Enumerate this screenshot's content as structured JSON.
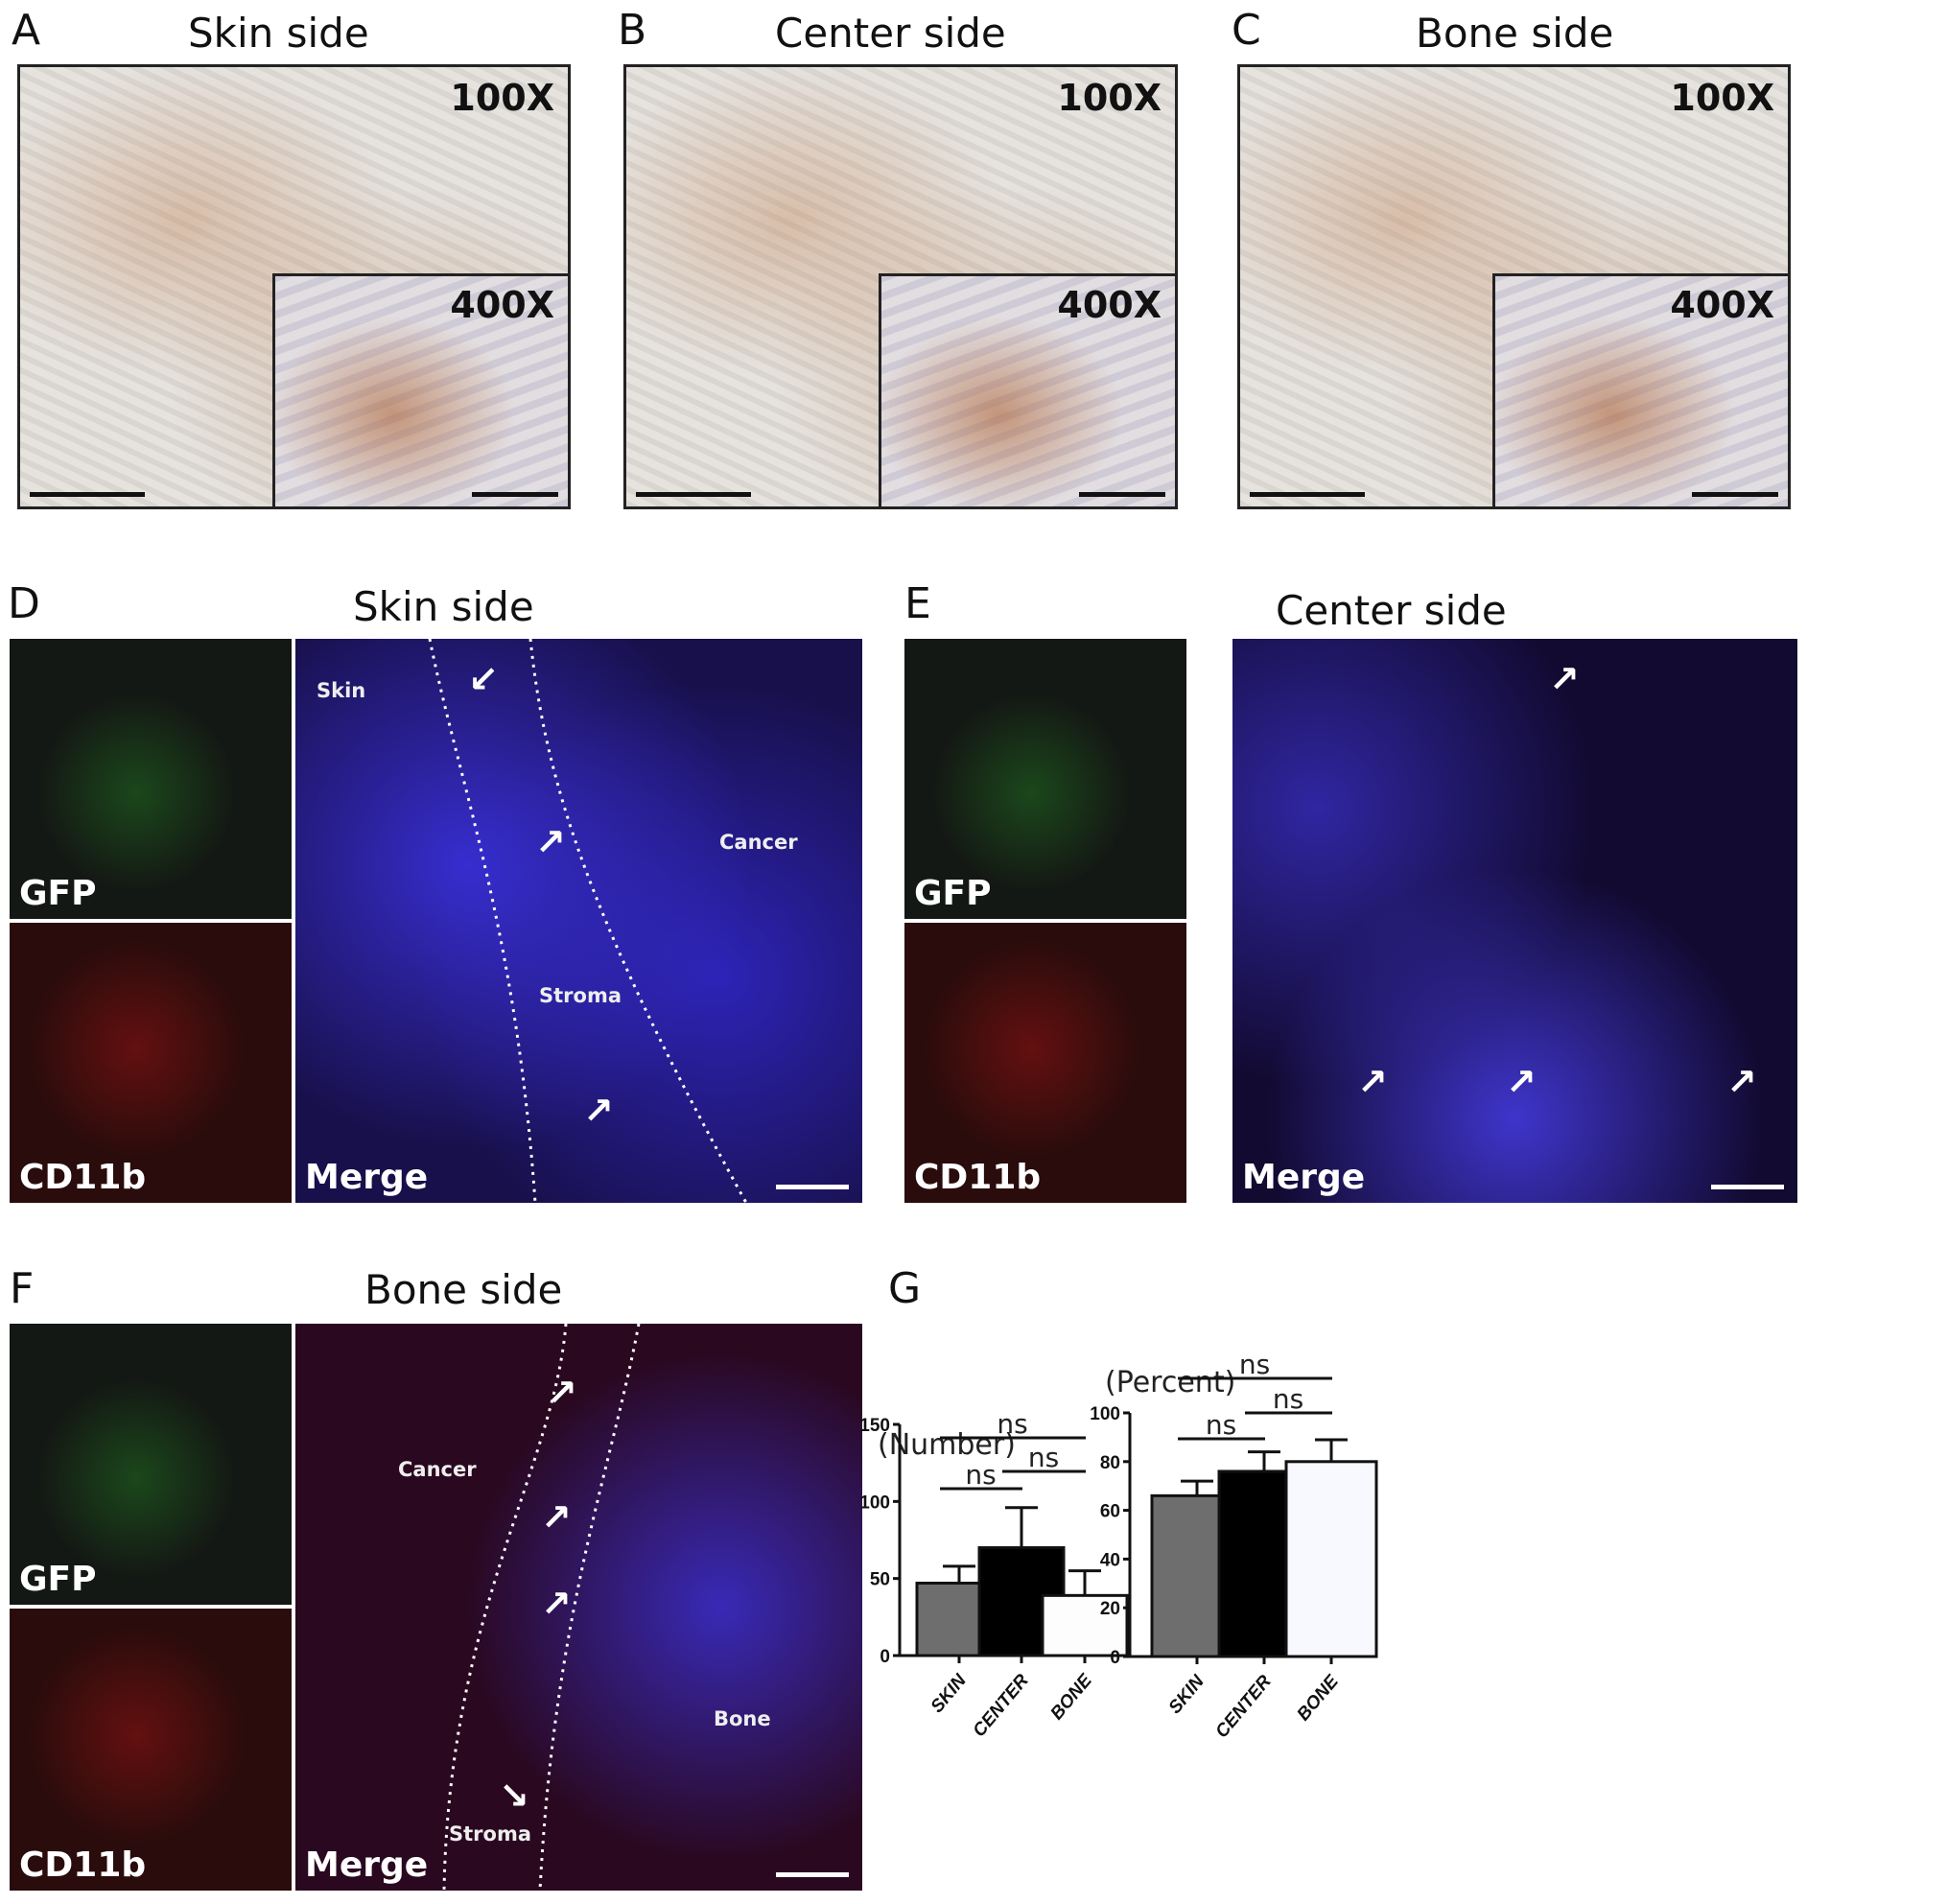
{
  "panels": {
    "A": {
      "letter": "A",
      "title": "Skin side",
      "low_mag": "100X",
      "high_mag": "400X"
    },
    "B": {
      "letter": "B",
      "title": "Center side",
      "low_mag": "100X",
      "high_mag": "400X"
    },
    "C": {
      "letter": "C",
      "title": "Bone side",
      "low_mag": "100X",
      "high_mag": "400X"
    },
    "D": {
      "letter": "D",
      "title": "Skin side",
      "gfp": "GFP",
      "cd11b": "CD11b",
      "merge": "Merge",
      "regions": [
        "Skin",
        "Cancer",
        "Stroma"
      ]
    },
    "E": {
      "letter": "E",
      "title": "Center side",
      "gfp": "GFP",
      "cd11b": "CD11b",
      "merge": "Merge"
    },
    "F": {
      "letter": "F",
      "title": "Bone side",
      "gfp": "GFP",
      "cd11b": "CD11b",
      "merge": "Merge",
      "regions": [
        "Cancer",
        "Bone",
        "Stroma"
      ]
    },
    "G": {
      "letter": "G"
    }
  },
  "chart_data": [
    {
      "type": "bar",
      "ylabel": "(Number)",
      "categories": [
        "SKIN",
        "CENTER",
        "BONE"
      ],
      "values": [
        47,
        70,
        39
      ],
      "error_upper": [
        58,
        96,
        55
      ],
      "ylim": [
        0,
        150
      ],
      "yticks": [
        "0",
        "50",
        "100",
        "150"
      ],
      "bar_colors": [
        "#6e6e6e",
        "#000000",
        "#fdfdfd"
      ],
      "comparisons": [
        {
          "pair": [
            "SKIN",
            "BONE"
          ],
          "label": "ns"
        },
        {
          "pair": [
            "CENTER",
            "BONE"
          ],
          "label": "ns"
        },
        {
          "pair": [
            "SKIN",
            "CENTER"
          ],
          "label": "ns"
        }
      ]
    },
    {
      "type": "bar",
      "ylabel": "(Percent)",
      "categories": [
        "SKIN",
        "CENTER",
        "BONE"
      ],
      "values": [
        66,
        76,
        80
      ],
      "error_upper": [
        72,
        84,
        89
      ],
      "ylim": [
        0,
        100
      ],
      "yticks": [
        "0",
        "20",
        "40",
        "60",
        "80",
        "100"
      ],
      "bar_colors": [
        "#6e6e6e",
        "#000000",
        "#f8f8ff"
      ],
      "comparisons": [
        {
          "pair": [
            "SKIN",
            "BONE"
          ],
          "label": "ns"
        },
        {
          "pair": [
            "CENTER",
            "BONE"
          ],
          "label": "ns"
        },
        {
          "pair": [
            "SKIN",
            "CENTER"
          ],
          "label": "ns"
        }
      ]
    }
  ]
}
